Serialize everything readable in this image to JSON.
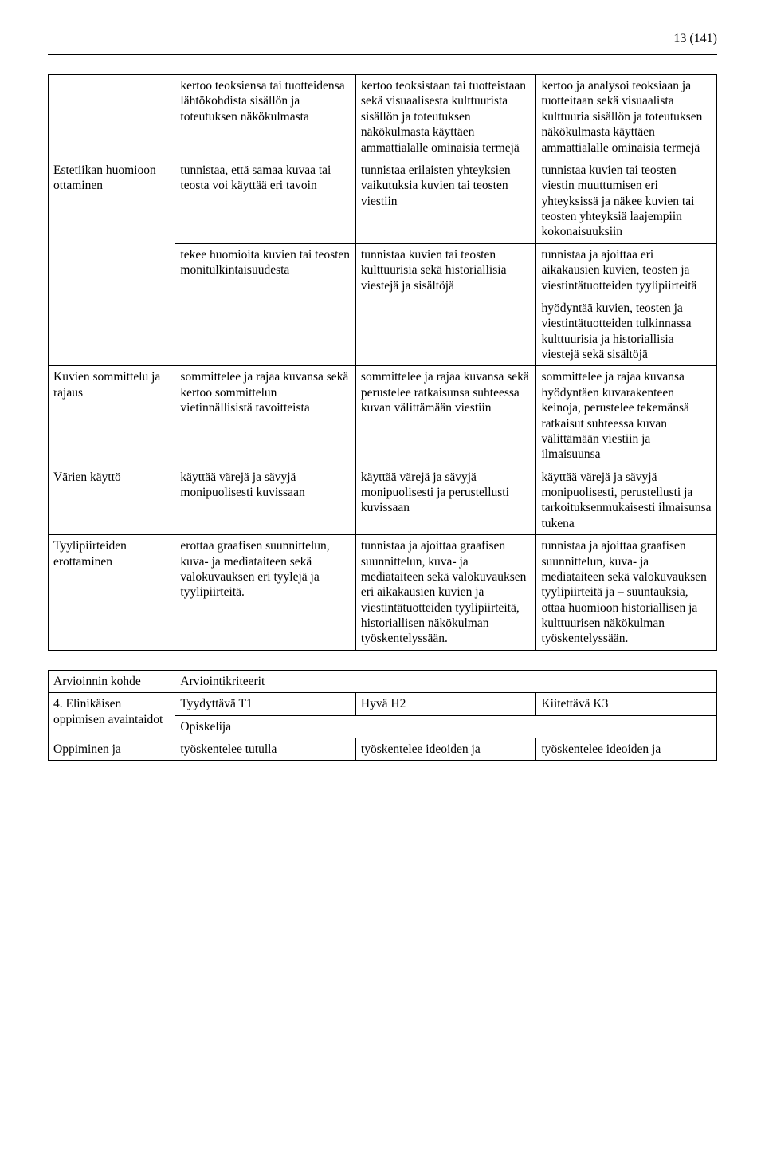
{
  "page_number": "13 (141)",
  "colors": {
    "text": "#000000",
    "background": "#ffffff",
    "border": "#000000"
  },
  "typography": {
    "font_family": "Times New Roman",
    "body_fontsize_pt": 12,
    "line_height": 1.25
  },
  "table1": {
    "type": "table",
    "column_widths_pct": [
      19,
      27,
      27,
      27
    ],
    "rows": [
      {
        "col1": "",
        "col2": "kertoo teoksiensa tai tuotteidensa lähtökohdista sisällön ja toteutuksen näkökulmasta",
        "col3": "kertoo teoksistaan tai tuotteistaan sekä visuaalisesta kulttuurista sisällön ja toteutuksen näkökulmasta käyttäen ammattialalle ominaisia termejä",
        "col4": "kertoo ja analysoi teoksiaan ja tuotteitaan sekä visuaalista kulttuuria sisällön ja toteutuksen näkökulmasta käyttäen ammattialalle ominaisia termejä"
      },
      {
        "col1": "Estetiikan huomioon ottaminen",
        "col1_rowspan": 2,
        "col2": "tunnistaa, että samaa kuvaa tai teosta voi käyttää eri tavoin",
        "col3": "tunnistaa erilaisten yhteyksien vaikutuksia kuvien tai teosten viestiin",
        "col4": "tunnistaa kuvien tai teosten viestin muuttumisen eri yhteyksissä ja näkee kuvien tai teosten yhteyksiä laajempiin kokonaisuuksiin"
      },
      {
        "col2": "tekee huomioita kuvien tai teosten monitulkintaisuudesta",
        "col2_rowspan": 2,
        "col3": "tunnistaa kuvien tai teosten kulttuurisia sekä historiallisia viestejä ja sisältöjä",
        "col3_rowspan": 2,
        "col4": "tunnistaa ja ajoittaa eri aikakausien kuvien, teosten ja viestintätuotteiden tyylipiirteitä"
      },
      {
        "col4": "hyödyntää kuvien, teosten ja viestintätuotteiden tulkinnassa kulttuurisia ja historiallisia viestejä sekä sisältöjä"
      },
      {
        "col1": "Kuvien sommittelu ja rajaus",
        "col2": "sommittelee ja rajaa kuvansa sekä kertoo sommittelun vietinnällisistä tavoitteista",
        "col3": "sommittelee ja rajaa kuvansa sekä perustelee ratkaisunsa suhteessa kuvan välittämään viestiin",
        "col4": "sommittelee ja rajaa kuvansa hyödyntäen kuvarakenteen keinoja, perustelee tekemänsä ratkaisut suhteessa kuvan välittämään viestiin ja ilmaisuunsa"
      },
      {
        "col1": "Värien käyttö",
        "col2": "käyttää värejä ja sävyjä monipuolisesti kuvissaan",
        "col3": "käyttää värejä ja sävyjä monipuolisesti ja perustellusti kuvissaan",
        "col4": "käyttää värejä ja sävyjä monipuolisesti, perustellusti ja tarkoituksenmukaisesti ilmaisunsa tukena"
      },
      {
        "col1": "Tyylipiirteiden erottaminen",
        "col2": "erottaa graafisen suunnittelun, kuva- ja mediataiteen sekä valokuvauksen eri tyylejä ja tyylipiirteitä.",
        "col3": "tunnistaa ja ajoittaa graafisen suunnittelun, kuva- ja mediataiteen sekä valokuvauksen eri aikakausien kuvien ja viestintätuotteiden tyylipiirteitä, historiallisen näkökulman työskentelyssään.",
        "col4": "tunnistaa ja ajoittaa graafisen suunnittelun, kuva- ja mediataiteen sekä valokuvauksen tyylipiirteitä ja – suuntauksia, ottaa huomioon historiallisen ja kulttuurisen näkökulman työskentelyssään."
      }
    ]
  },
  "table2": {
    "type": "table",
    "column_widths_pct": [
      19,
      27,
      27,
      27
    ],
    "rows": [
      {
        "col1": "Arvioinnin kohde",
        "col234": "Arviointikriteerit"
      },
      {
        "col1": "4. Elinikäisen oppimisen avaintaidot",
        "col1_rowspan": 2,
        "col2": "Tyydyttävä T1",
        "col3": "Hyvä H2",
        "col4": "Kiitettävä K3"
      },
      {
        "col234": "Opiskelija"
      },
      {
        "col1": "Oppiminen ja",
        "col2": "työskentelee tutulla",
        "col3": "työskentelee ideoiden ja",
        "col4": "työskentelee ideoiden ja"
      }
    ]
  }
}
